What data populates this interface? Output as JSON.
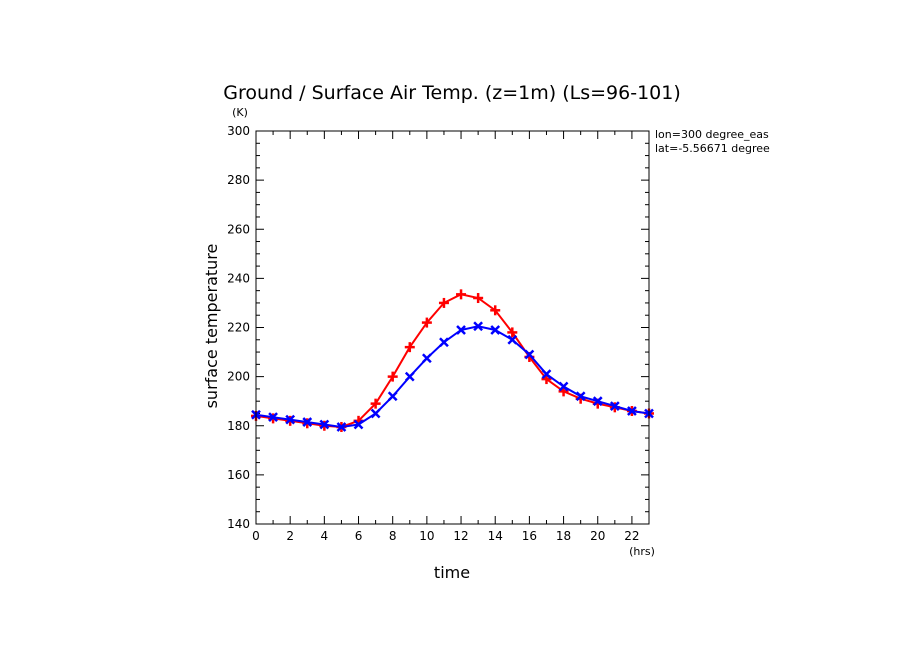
{
  "chart_data": {
    "type": "line",
    "title": "Ground / Surface Air Temp. (z=1m) (Ls=96-101)",
    "xlabel": "time",
    "ylabel": "surface temperature",
    "x_unit": "(hrs)",
    "y_unit": "(K)",
    "annotations": [
      "lon=300 degree_eas",
      "lat=-5.56671 degree"
    ],
    "xlim": [
      0,
      23
    ],
    "ylim": [
      140,
      300
    ],
    "x_ticks": [
      0,
      2,
      4,
      6,
      8,
      10,
      12,
      14,
      16,
      18,
      20,
      22
    ],
    "y_ticks": [
      140,
      160,
      180,
      200,
      220,
      240,
      260,
      280,
      300
    ],
    "grid": false,
    "x": [
      0,
      1,
      2,
      3,
      4,
      5,
      6,
      7,
      8,
      9,
      10,
      11,
      12,
      13,
      14,
      15,
      16,
      17,
      18,
      19,
      20,
      21,
      22,
      23
    ],
    "series": [
      {
        "color": "#ff0000",
        "marker": "plus",
        "values": [
          184,
          183,
          182,
          181,
          180,
          179.5,
          182,
          189,
          200,
          212,
          222,
          230,
          233.5,
          232,
          227,
          218,
          208,
          199,
          194,
          191,
          189,
          187.5,
          186,
          185
        ]
      },
      {
        "color": "#0000ff",
        "marker": "x",
        "values": [
          184.5,
          183.5,
          182.5,
          181.5,
          180.5,
          179.5,
          180.5,
          185,
          192,
          200,
          207.5,
          214,
          219,
          220.5,
          219,
          215,
          209,
          201,
          196,
          192,
          190,
          188,
          186,
          185
        ]
      }
    ]
  }
}
